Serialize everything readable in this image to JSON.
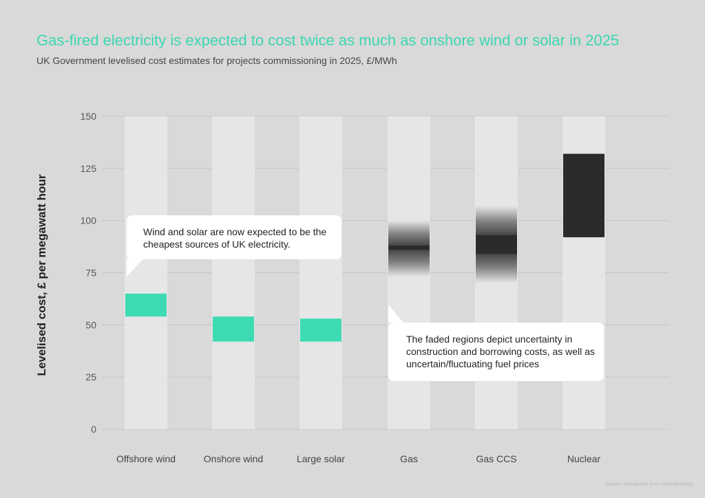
{
  "title": "Gas-fired electricity is expected to cost twice as much as onshore wind or solar in 2025",
  "subtitle": "UK Government levelised cost estimates for projects commissioning in 2025, £/MWh",
  "credit": "Graphic reproduced from carbonbrief.org",
  "annotations": {
    "wind_solar": "Wind and solar are now expected to be the cheapest sources of UK electricity.",
    "faded": "The faded regions depict uncertainty in construction and borrowing costs, as well as uncertain/fluctuating fuel prices"
  },
  "colors": {
    "renewable": "#3ddbb3",
    "fossil": "#2b2b2b",
    "column_bg": "#e6e6e6",
    "title": "#3bd6b0"
  },
  "chart_data": {
    "type": "range_bar",
    "title": "Gas-fired electricity is expected to cost twice as much as onshore wind or solar in 2025",
    "subtitle": "UK Government levelised cost estimates for projects commissioning in 2025, £/MWh",
    "ylabel": "Levelised cost, £ per megawatt hour",
    "xlabel": "",
    "ylim": [
      0,
      150
    ],
    "yticks": [
      0,
      25,
      50,
      75,
      100,
      125,
      150
    ],
    "grid": true,
    "categories": [
      "Offshore wind",
      "Onshore wind",
      "Large solar",
      "Gas",
      "Gas CCS",
      "Nuclear"
    ],
    "series": [
      {
        "category": "Offshore wind",
        "low": 54,
        "high": 65,
        "color_key": "renewable",
        "faded": false
      },
      {
        "category": "Onshore wind",
        "low": 42,
        "high": 54,
        "color_key": "renewable",
        "faded": false
      },
      {
        "category": "Large solar",
        "low": 42,
        "high": 53,
        "color_key": "renewable",
        "faded": false
      },
      {
        "category": "Gas",
        "low": 73,
        "high": 100,
        "solid_low": 86,
        "solid_high": 88,
        "color_key": "fossil",
        "faded": true
      },
      {
        "category": "Gas CCS",
        "low": 70,
        "high": 107,
        "solid_low": 84,
        "solid_high": 93,
        "color_key": "fossil",
        "faded": true
      },
      {
        "category": "Nuclear",
        "low": 92,
        "high": 132,
        "color_key": "fossil",
        "faded": false
      }
    ]
  }
}
